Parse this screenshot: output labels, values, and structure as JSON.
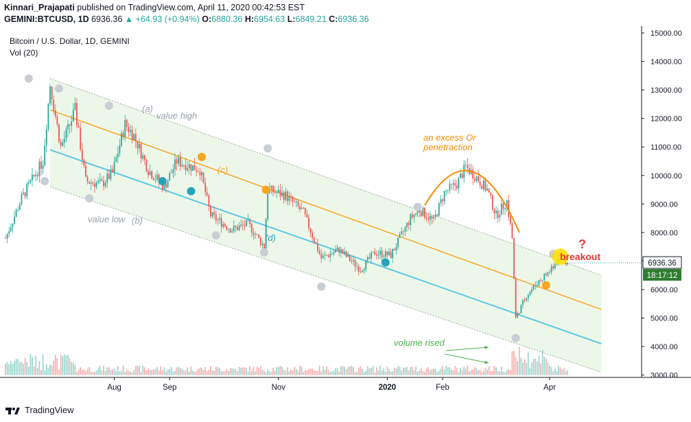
{
  "header": {
    "author": "Kinnari_Prajapati",
    "published_text": " published on TradingView.com, April 11, 2020 00:42:53 EST",
    "symbol": "GEMINI:BTCUSD, 1D",
    "last": "6936.36",
    "change": "+64.93 (+0.94%)",
    "o_label": "O:",
    "o": "6880.36",
    "h_label": "H:",
    "h": "6954.63",
    "l_label": "L:",
    "l": "6849.21",
    "c_label": "C:",
    "c": "6936.36"
  },
  "legend": {
    "title": "Bitcoin / U.S. Dollar, 1D, GEMINI",
    "volume_label": "Vol (20)"
  },
  "price_tags": {
    "last_price": "6936.36",
    "countdown": "18:17:12"
  },
  "annotations": {
    "a": "(a)",
    "value_high": "value high",
    "b": "(b)",
    "value_low": "value low",
    "c": "(c)",
    "d": "(d)",
    "excess_line1": "an excess Or",
    "excess_line2": "penetraction",
    "breakout": "breakout",
    "question": "?",
    "volume_rised": "volume rised"
  },
  "branding": {
    "name": "TradingView"
  },
  "colors": {
    "up": "#26a69a",
    "down": "#ef5350",
    "channel_fill": "#e8f5e3",
    "mid_line": "#f5a623",
    "lower_line": "#5bc8e0",
    "arc": "#f58b00"
  },
  "chart_data": {
    "type": "candlestick",
    "title": "Bitcoin / U.S. Dollar, 1D, GEMINI",
    "x_ticks": [
      "Aug",
      "Sep",
      "Nov",
      "2020",
      "Feb",
      "Apr"
    ],
    "y_ticks": [
      "3000.00",
      "4000.00",
      "5000.00",
      "6000.00",
      "7000.00",
      "8000.00",
      "9000.00",
      "10000.00",
      "11000.00",
      "12000.00",
      "13000.00",
      "14000.00",
      "15000.00"
    ],
    "ylim": [
      3000,
      15000
    ],
    "last_close": 6936.36,
    "price_path": [
      {
        "date": "2019-06-01",
        "close": 7800
      },
      {
        "date": "2019-06-10",
        "close": 9200
      },
      {
        "date": "2019-06-22",
        "close": 10500
      },
      {
        "date": "2019-06-26",
        "close": 13200
      },
      {
        "date": "2019-07-02",
        "close": 11000
      },
      {
        "date": "2019-07-06",
        "close": 11600
      },
      {
        "date": "2019-07-10",
        "close": 12300
      },
      {
        "date": "2019-07-16",
        "close": 9800
      },
      {
        "date": "2019-07-25",
        "close": 9700
      },
      {
        "date": "2019-07-31",
        "close": 10100
      },
      {
        "date": "2019-08-07",
        "close": 11800
      },
      {
        "date": "2019-08-12",
        "close": 11400
      },
      {
        "date": "2019-08-20",
        "close": 10200
      },
      {
        "date": "2019-08-29",
        "close": 9600
      },
      {
        "date": "2019-09-05",
        "close": 10500
      },
      {
        "date": "2019-09-18",
        "close": 10200
      },
      {
        "date": "2019-09-24",
        "close": 8600
      },
      {
        "date": "2019-10-06",
        "close": 8100
      },
      {
        "date": "2019-10-15",
        "close": 8300
      },
      {
        "date": "2019-10-24",
        "close": 7500
      },
      {
        "date": "2019-10-26",
        "close": 9500
      },
      {
        "date": "2019-11-05",
        "close": 9300
      },
      {
        "date": "2019-11-15",
        "close": 8700
      },
      {
        "date": "2019-11-25",
        "close": 7100
      },
      {
        "date": "2019-12-05",
        "close": 7400
      },
      {
        "date": "2019-12-17",
        "close": 6700
      },
      {
        "date": "2019-12-25",
        "close": 7300
      },
      {
        "date": "2020-01-03",
        "close": 7200
      },
      {
        "date": "2020-01-14",
        "close": 8500
      },
      {
        "date": "2020-01-19",
        "close": 8800
      },
      {
        "date": "2020-01-27",
        "close": 8400
      },
      {
        "date": "2020-02-02",
        "close": 9400
      },
      {
        "date": "2020-02-09",
        "close": 9700
      },
      {
        "date": "2020-02-14",
        "close": 10300
      },
      {
        "date": "2020-02-19",
        "close": 10000
      },
      {
        "date": "2020-02-26",
        "close": 9500
      },
      {
        "date": "2020-03-02",
        "close": 8600
      },
      {
        "date": "2020-03-08",
        "close": 9100
      },
      {
        "date": "2020-03-11",
        "close": 7800
      },
      {
        "date": "2020-03-13",
        "close": 5000
      },
      {
        "date": "2020-03-19",
        "close": 5800
      },
      {
        "date": "2020-03-26",
        "close": 6300
      },
      {
        "date": "2020-04-02",
        "close": 6700
      },
      {
        "date": "2020-04-07",
        "close": 7200
      },
      {
        "date": "2020-04-11",
        "close": 6936
      }
    ],
    "channel": {
      "upper": [
        {
          "date": "2019-06-26",
          "price": 13400
        },
        {
          "date": "2020-04-30",
          "price": 6500
        }
      ],
      "middle": [
        {
          "date": "2019-06-26",
          "price": 12300
        },
        {
          "date": "2020-04-30",
          "price": 5300
        }
      ],
      "lower": [
        {
          "date": "2019-06-26",
          "price": 10900
        },
        {
          "date": "2020-04-30",
          "price": 4100
        }
      ],
      "bottom": [
        {
          "date": "2019-06-26",
          "price": 9600
        },
        {
          "date": "2020-04-30",
          "price": 3100
        }
      ]
    }
  }
}
